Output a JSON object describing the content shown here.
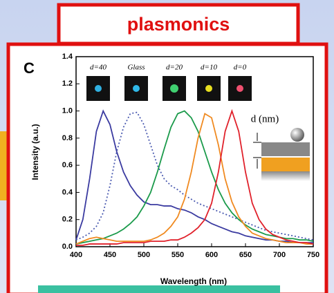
{
  "header": "plasmonics",
  "chart_data": {
    "type": "line",
    "panel_label": "C",
    "x_label": "Wavelength (nm)",
    "y_label": "Intensity (a.u.)",
    "x": [
      400,
      410,
      420,
      430,
      440,
      450,
      460,
      470,
      480,
      490,
      500,
      510,
      520,
      530,
      540,
      550,
      560,
      570,
      580,
      590,
      600,
      610,
      620,
      630,
      640,
      650,
      660,
      670,
      680,
      690,
      700,
      710,
      720,
      730,
      740,
      750
    ],
    "series": [
      {
        "name": "d=40",
        "color": "#3a3aa0",
        "line_style": "solid",
        "values": [
          0.05,
          0.2,
          0.5,
          0.85,
          1.0,
          0.9,
          0.7,
          0.55,
          0.45,
          0.38,
          0.33,
          0.31,
          0.31,
          0.3,
          0.3,
          0.28,
          0.27,
          0.25,
          0.22,
          0.2,
          0.17,
          0.15,
          0.13,
          0.11,
          0.1,
          0.08,
          0.07,
          0.06,
          0.05,
          0.05,
          0.04,
          0.04,
          0.03,
          0.03,
          0.03,
          0.03
        ]
      },
      {
        "name": "Glass",
        "color": "#4a5ab0",
        "line_style": "dotted",
        "values": [
          0.05,
          0.07,
          0.1,
          0.15,
          0.25,
          0.45,
          0.7,
          0.88,
          0.98,
          0.99,
          0.9,
          0.75,
          0.6,
          0.5,
          0.45,
          0.42,
          0.38,
          0.35,
          0.32,
          0.3,
          0.28,
          0.26,
          0.24,
          0.22,
          0.2,
          0.18,
          0.16,
          0.14,
          0.12,
          0.11,
          0.1,
          0.09,
          0.08,
          0.07,
          0.06,
          0.05
        ]
      },
      {
        "name": "d=20",
        "color": "#1a9a4a",
        "line_style": "solid",
        "values": [
          0.02,
          0.03,
          0.04,
          0.05,
          0.06,
          0.08,
          0.1,
          0.13,
          0.17,
          0.22,
          0.3,
          0.4,
          0.55,
          0.72,
          0.88,
          0.98,
          1.0,
          0.95,
          0.85,
          0.7,
          0.55,
          0.42,
          0.32,
          0.25,
          0.2,
          0.16,
          0.13,
          0.11,
          0.09,
          0.08,
          0.07,
          0.06,
          0.06,
          0.05,
          0.05,
          0.04
        ]
      },
      {
        "name": "d=10",
        "color": "#f08a20",
        "line_style": "solid",
        "values": [
          0.02,
          0.04,
          0.06,
          0.07,
          0.06,
          0.05,
          0.04,
          0.04,
          0.04,
          0.04,
          0.04,
          0.05,
          0.07,
          0.1,
          0.15,
          0.22,
          0.35,
          0.55,
          0.8,
          0.98,
          0.95,
          0.75,
          0.5,
          0.33,
          0.22,
          0.15,
          0.1,
          0.08,
          0.06,
          0.05,
          0.04,
          0.03,
          0.03,
          0.03,
          0.02,
          0.02
        ]
      },
      {
        "name": "d=0",
        "color": "#e0202a",
        "line_style": "solid",
        "values": [
          0.01,
          0.01,
          0.02,
          0.02,
          0.02,
          0.02,
          0.02,
          0.03,
          0.03,
          0.03,
          0.03,
          0.04,
          0.04,
          0.04,
          0.05,
          0.05,
          0.07,
          0.1,
          0.14,
          0.2,
          0.32,
          0.55,
          0.85,
          1.0,
          0.85,
          0.55,
          0.32,
          0.2,
          0.13,
          0.09,
          0.07,
          0.05,
          0.04,
          0.03,
          0.03,
          0.02
        ]
      }
    ],
    "xlim": [
      400,
      750
    ],
    "xticks": [
      400,
      450,
      500,
      550,
      600,
      650,
      700,
      750
    ],
    "ylim": [
      0,
      1.4
    ],
    "yticks": [
      {
        "value": 0,
        "label": "0.0"
      },
      {
        "value": 0.2,
        "label": "0.2"
      },
      {
        "value": 0.4,
        "label": "0.4"
      },
      {
        "value": 0.6,
        "label": "0.6"
      },
      {
        "value": 0.8,
        "label": "0.8"
      },
      {
        "value": 1,
        "label": "1.0"
      },
      {
        "value": 1.2,
        "label": "1.2"
      },
      {
        "value": 1.4,
        "label": "1.4"
      }
    ],
    "annotation": "d (nm)"
  }
}
